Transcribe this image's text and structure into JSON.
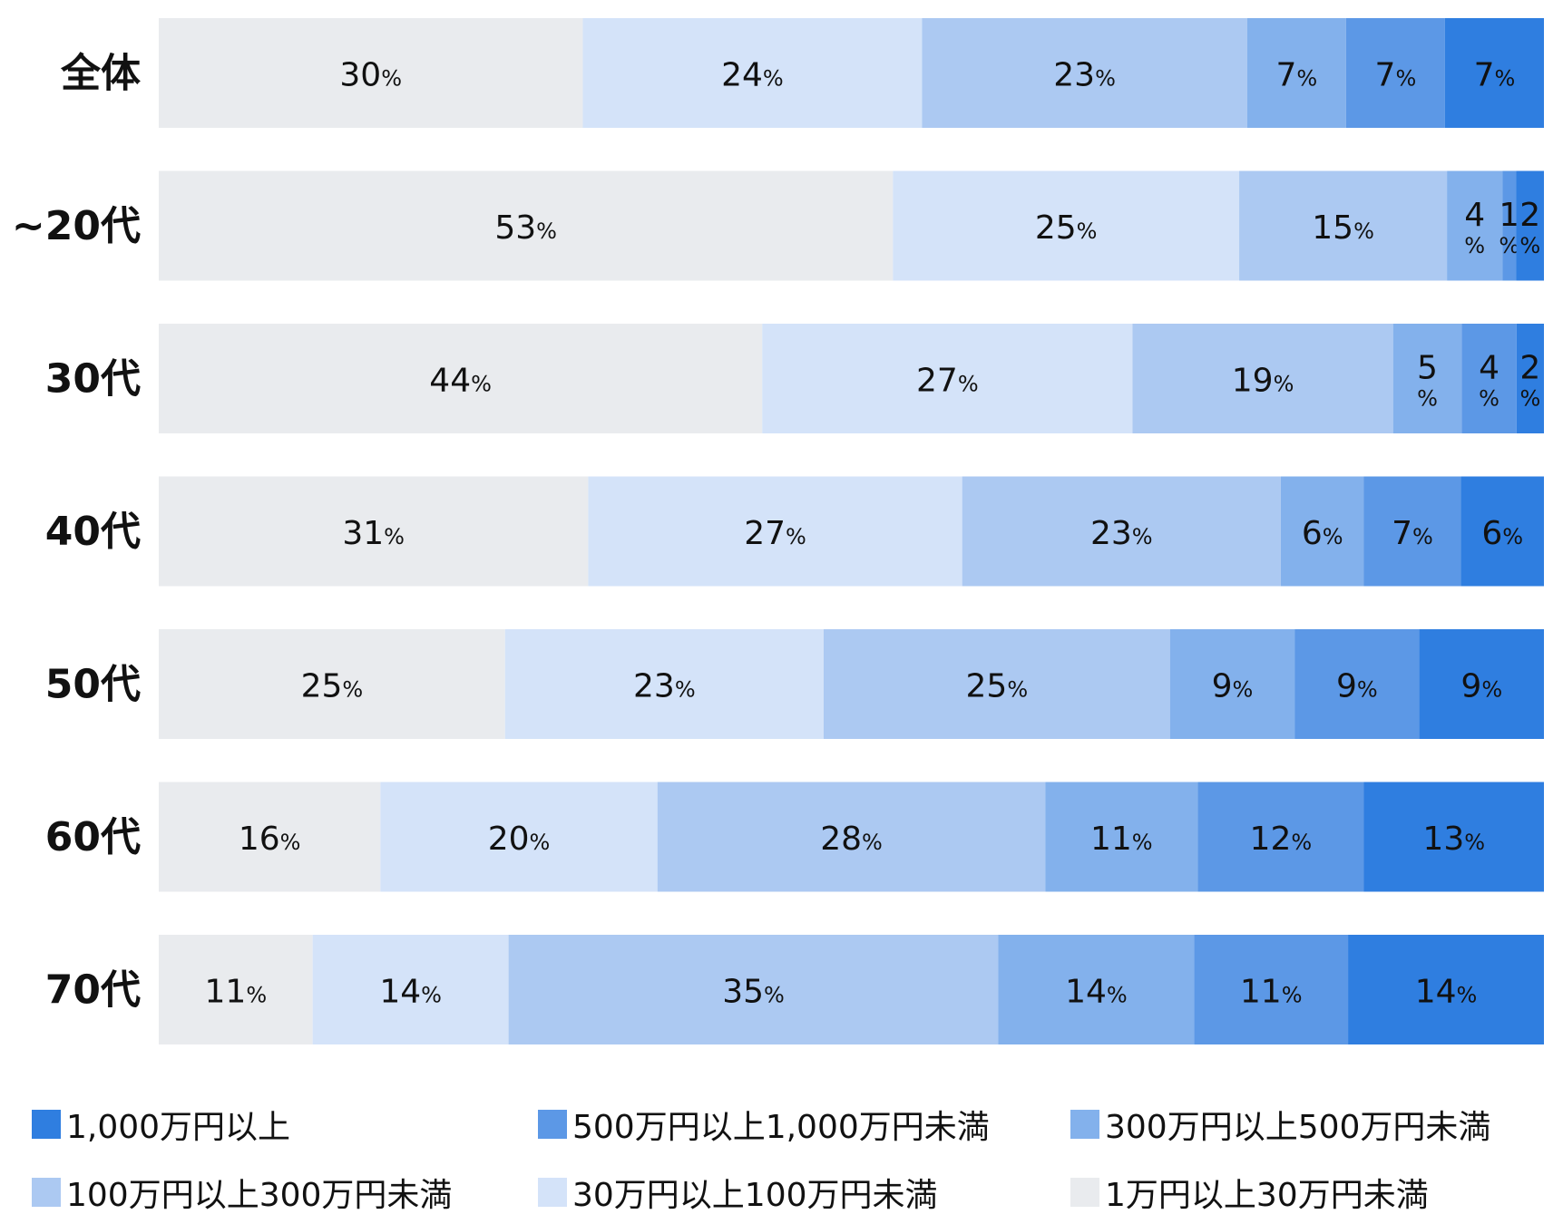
{
  "chart_data": {
    "type": "bar",
    "orientation": "horizontal",
    "stacked": "percent",
    "categories": [
      "全体",
      "~20代",
      "30代",
      "40代",
      "50代",
      "60代",
      "70代"
    ],
    "series": [
      {
        "name": "1万円以上30万円未満",
        "color": "#e9ebee",
        "values": [
          30,
          53,
          44,
          31,
          25,
          16,
          11
        ]
      },
      {
        "name": "30万円以上100万円未満",
        "color": "#d4e3f9",
        "values": [
          24,
          25,
          27,
          27,
          23,
          20,
          14
        ]
      },
      {
        "name": "100万円以上300万円未満",
        "color": "#acc9f2",
        "values": [
          23,
          15,
          19,
          23,
          25,
          28,
          35
        ]
      },
      {
        "name": "300万円以上500万円未満",
        "color": "#83b1ec",
        "values": [
          7,
          4,
          5,
          6,
          9,
          11,
          14
        ]
      },
      {
        "name": "500万円以上1,000万円未満",
        "color": "#5c98e6",
        "values": [
          7,
          1,
          4,
          7,
          9,
          12,
          11
        ]
      },
      {
        "name": "1,000万円以上",
        "color": "#2f7ee0",
        "values": [
          7,
          2,
          2,
          6,
          9,
          13,
          14
        ]
      }
    ],
    "value_suffix": "%",
    "legend_position": "bottom",
    "legend_order": [
      "1,000万円以上",
      "500万円以上1,000万円未満",
      "300万円以上500万円未満",
      "100万円以上300万円未満",
      "30万円以上100万円未満",
      "1万円以上30万円未満"
    ],
    "grid": false
  }
}
